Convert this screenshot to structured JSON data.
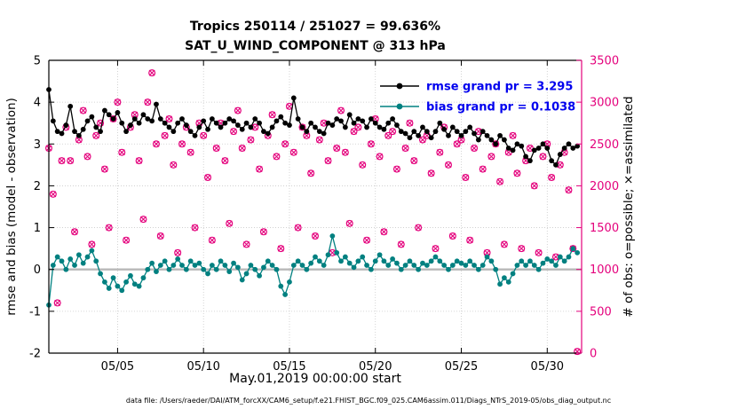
{
  "title": {
    "line1": "Tropics 250114 / 251027 = 99.636%",
    "line2": "SAT_U_WIND_COMPONENT @ 313 hPa"
  },
  "axes": {
    "left_label": "rmse and bias (model - observation)",
    "right_label": "# of obs: o=possible; ×=assimilated",
    "x_label": "May.01,2019 00:00:00 start",
    "left_ticks": [
      -2,
      -1,
      0,
      1,
      2,
      3,
      4,
      5
    ],
    "left_range": [
      -2,
      5
    ],
    "right_ticks": [
      0,
      500,
      1000,
      1500,
      2000,
      2500,
      3000,
      3500
    ],
    "right_range": [
      0,
      3500
    ],
    "x_tick_labels": [
      "05/05",
      "05/10",
      "05/15",
      "05/20",
      "05/25",
      "05/30"
    ],
    "x_tick_positions": [
      4,
      9,
      14,
      19,
      24,
      29
    ],
    "x_range": [
      0,
      31
    ]
  },
  "legend": {
    "text_color": "#0000EE",
    "items": [
      {
        "label": "rmse grand pr = 3.295",
        "color": "#000000"
      },
      {
        "label": "bias grand pr = 0.1038",
        "color": "#008080"
      }
    ]
  },
  "footer": "data file: /Users/raeder/DAI/ATM_forcXX/CAM6_setup/f.e21.FHIST_BGC.f09_025.CAM6assim.011/Diags_NTrS_2019-05/obs_diag_output.nc",
  "colors": {
    "rmse": "#000000",
    "bias": "#008080",
    "obs": "#e4007c",
    "zero_line": "#b8b8b8",
    "legend_text": "#0000EE"
  },
  "chart_data": {
    "type": "line",
    "x_step_days": 0.25,
    "x_start": "2019-05-01 00:00:00",
    "series": [
      {
        "name": "rmse",
        "axis": "left",
        "color": "#000000",
        "marker": "dot",
        "grand_value": 3.295,
        "values": [
          4.3,
          3.55,
          3.3,
          3.25,
          3.45,
          3.9,
          3.3,
          3.2,
          3.35,
          3.55,
          3.65,
          3.4,
          3.3,
          3.8,
          3.7,
          3.6,
          3.75,
          3.5,
          3.3,
          3.45,
          3.6,
          3.5,
          3.7,
          3.6,
          3.55,
          3.95,
          3.6,
          3.5,
          3.4,
          3.3,
          3.5,
          3.6,
          3.45,
          3.3,
          3.2,
          3.4,
          3.55,
          3.35,
          3.6,
          3.5,
          3.4,
          3.5,
          3.6,
          3.55,
          3.45,
          3.35,
          3.5,
          3.4,
          3.6,
          3.5,
          3.3,
          3.25,
          3.4,
          3.55,
          3.65,
          3.5,
          3.45,
          4.1,
          3.6,
          3.4,
          3.3,
          3.5,
          3.4,
          3.3,
          3.25,
          3.5,
          3.45,
          3.6,
          3.55,
          3.4,
          3.7,
          3.5,
          3.6,
          3.55,
          3.4,
          3.6,
          3.5,
          3.4,
          3.35,
          3.5,
          3.6,
          3.45,
          3.3,
          3.25,
          3.15,
          3.3,
          3.2,
          3.4,
          3.3,
          3.15,
          3.3,
          3.5,
          3.35,
          3.2,
          3.4,
          3.3,
          3.2,
          3.3,
          3.4,
          3.25,
          3.1,
          3.3,
          3.2,
          3.1,
          3.0,
          3.2,
          3.1,
          2.9,
          2.85,
          3.0,
          2.95,
          2.7,
          2.6,
          2.85,
          2.9,
          3.0,
          2.9,
          2.6,
          2.5,
          2.75,
          2.9,
          3.0,
          2.9,
          2.95
        ]
      },
      {
        "name": "bias",
        "axis": "left",
        "color": "#008080",
        "marker": "dot",
        "grand_value": 0.1038,
        "values": [
          -0.85,
          0.1,
          0.3,
          0.2,
          0.0,
          0.25,
          0.1,
          0.35,
          0.15,
          0.3,
          0.45,
          0.2,
          -0.1,
          -0.3,
          -0.45,
          -0.2,
          -0.4,
          -0.5,
          -0.3,
          -0.15,
          -0.35,
          -0.4,
          -0.2,
          0.0,
          0.15,
          -0.05,
          0.1,
          0.2,
          0.0,
          0.1,
          0.25,
          0.1,
          0.0,
          0.2,
          0.1,
          0.15,
          0.0,
          -0.1,
          0.1,
          0.0,
          0.2,
          0.1,
          -0.05,
          0.15,
          0.05,
          -0.25,
          -0.1,
          0.1,
          0.0,
          -0.15,
          0.05,
          0.2,
          0.1,
          0.0,
          -0.4,
          -0.6,
          -0.3,
          0.1,
          0.2,
          0.1,
          0.0,
          0.15,
          0.3,
          0.2,
          0.1,
          0.35,
          0.8,
          0.4,
          0.2,
          0.3,
          0.15,
          0.05,
          0.2,
          0.3,
          0.1,
          0.0,
          0.2,
          0.35,
          0.2,
          0.1,
          0.25,
          0.15,
          0.0,
          0.1,
          0.2,
          0.1,
          0.0,
          0.15,
          0.1,
          0.2,
          0.3,
          0.2,
          0.1,
          0.0,
          0.1,
          0.2,
          0.15,
          0.1,
          0.2,
          0.1,
          0.0,
          0.1,
          0.3,
          0.2,
          0.0,
          -0.35,
          -0.2,
          -0.3,
          -0.1,
          0.1,
          0.2,
          0.1,
          0.2,
          0.1,
          0.0,
          0.15,
          0.25,
          0.2,
          0.1,
          0.3,
          0.2,
          0.3,
          0.5,
          0.4
        ]
      },
      {
        "name": "possible_obs",
        "axis": "right",
        "color": "#e4007c",
        "marker": "o",
        "values": [
          2450,
          1900,
          600,
          2300,
          2700,
          2300,
          1450,
          2550,
          2900,
          2350,
          1300,
          2600,
          2750,
          2200,
          1500,
          2800,
          3000,
          2400,
          1350,
          2700,
          2850,
          2300,
          1600,
          3000,
          3350,
          2500,
          1400,
          2600,
          2800,
          2250,
          1200,
          2500,
          2700,
          2400,
          1500,
          2750,
          2600,
          2100,
          1350,
          2450,
          2750,
          2300,
          1550,
          2650,
          2900,
          2450,
          1300,
          2550,
          2700,
          2200,
          1450,
          2600,
          2850,
          2350,
          1250,
          2500,
          2950,
          2400,
          1500,
          2700,
          2600,
          2150,
          1400,
          2550,
          2750,
          2300,
          1200,
          2450,
          2900,
          2400,
          1550,
          2650,
          2700,
          2250,
          1350,
          2500,
          2800,
          2350,
          1450,
          2600,
          2650,
          2200,
          1300,
          2450,
          2750,
          2300,
          1500,
          2550,
          2600,
          2150,
          1250,
          2400,
          2700,
          2250,
          1400,
          2500,
          2550,
          2100,
          1350,
          2450,
          2650,
          2200,
          1200,
          2350,
          2500,
          2050,
          1300,
          2400,
          2600,
          2150,
          1250,
          2300,
          2450,
          2000,
          1200,
          2350,
          2500,
          2100,
          1150,
          2250,
          2400,
          1950,
          1250,
          20
        ]
      },
      {
        "name": "assimilated_obs",
        "axis": "right",
        "color": "#e4007c",
        "marker": "x",
        "same_as": "possible_obs"
      }
    ]
  }
}
